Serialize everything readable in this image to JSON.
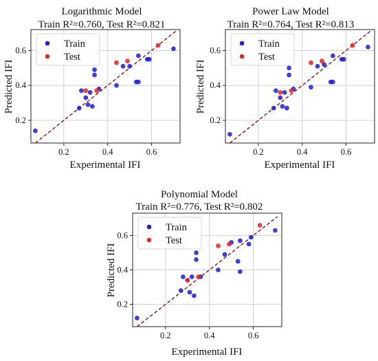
{
  "colors": {
    "train": "#1f1fd6",
    "test": "#e52424",
    "fit_line": "#8b0000",
    "grid": "#d0d0d0",
    "legend_border": "#d5d5d5"
  },
  "chart_data": [
    {
      "type": "scatter",
      "title": "Logarithmic Model",
      "subtitle": "Train R²=0.760, Test R²=0.821",
      "xlabel": "Experimental IFI",
      "ylabel": "Predicted IFI",
      "xlim": [
        0.05,
        0.73
      ],
      "ylim": [
        0.07,
        0.72
      ],
      "xticks": [
        0.2,
        0.4,
        0.6
      ],
      "yticks": [
        0.2,
        0.4,
        0.6
      ],
      "grid": true,
      "legend_position": "top-left",
      "reference_line": {
        "style": "dashed",
        "x": [
          0.07,
          0.71
        ],
        "y": [
          0.07,
          0.71
        ]
      },
      "series": [
        {
          "name": "Train",
          "color_key": "train",
          "x": [
            0.07,
            0.27,
            0.28,
            0.3,
            0.31,
            0.32,
            0.33,
            0.34,
            0.34,
            0.36,
            0.44,
            0.47,
            0.5,
            0.53,
            0.54,
            0.54,
            0.58,
            0.59,
            0.7
          ],
          "y": [
            0.14,
            0.27,
            0.37,
            0.33,
            0.29,
            0.36,
            0.28,
            0.46,
            0.49,
            0.38,
            0.4,
            0.51,
            0.51,
            0.42,
            0.42,
            0.57,
            0.55,
            0.55,
            0.61
          ]
        },
        {
          "name": "Test",
          "color_key": "test",
          "x": [
            0.3,
            0.35,
            0.44,
            0.49,
            0.63
          ],
          "y": [
            0.37,
            0.37,
            0.53,
            0.54,
            0.63
          ]
        }
      ]
    },
    {
      "type": "scatter",
      "title": "Power Law Model",
      "subtitle": "Train R²=0.764, Test R²=0.813",
      "xlabel": "Experimental IFI",
      "ylabel": "Predicted IFI",
      "xlim": [
        0.05,
        0.73
      ],
      "ylim": [
        0.07,
        0.72
      ],
      "xticks": [
        0.2,
        0.4,
        0.6
      ],
      "yticks": [
        0.2,
        0.4,
        0.6
      ],
      "grid": true,
      "legend_position": "top-left",
      "reference_line": {
        "style": "dashed",
        "x": [
          0.07,
          0.71
        ],
        "y": [
          0.07,
          0.71
        ]
      },
      "series": [
        {
          "name": "Train",
          "color_key": "train",
          "x": [
            0.07,
            0.27,
            0.28,
            0.3,
            0.31,
            0.32,
            0.33,
            0.34,
            0.34,
            0.36,
            0.44,
            0.47,
            0.5,
            0.53,
            0.54,
            0.54,
            0.58,
            0.59,
            0.7
          ],
          "y": [
            0.12,
            0.27,
            0.37,
            0.33,
            0.28,
            0.36,
            0.27,
            0.46,
            0.5,
            0.38,
            0.39,
            0.51,
            0.52,
            0.42,
            0.42,
            0.57,
            0.55,
            0.55,
            0.62
          ]
        },
        {
          "name": "Test",
          "color_key": "test",
          "x": [
            0.3,
            0.35,
            0.44,
            0.49,
            0.63
          ],
          "y": [
            0.36,
            0.37,
            0.53,
            0.54,
            0.63
          ]
        }
      ]
    },
    {
      "type": "scatter",
      "title": "Polynomial Model",
      "subtitle": "Train R²=0.776, Test R²=0.802",
      "xlabel": "Experimental IFI",
      "ylabel": "Predicted IFI",
      "xlim": [
        0.05,
        0.73
      ],
      "ylim": [
        0.07,
        0.73
      ],
      "xticks": [
        0.2,
        0.4,
        0.6
      ],
      "yticks": [
        0.2,
        0.4,
        0.6
      ],
      "grid": true,
      "legend_position": "top-left",
      "reference_line": {
        "style": "dashed",
        "x": [
          0.07,
          0.71
        ],
        "y": [
          0.07,
          0.71
        ]
      },
      "series": [
        {
          "name": "Train",
          "color_key": "train",
          "x": [
            0.07,
            0.27,
            0.28,
            0.3,
            0.31,
            0.32,
            0.33,
            0.34,
            0.34,
            0.36,
            0.44,
            0.47,
            0.5,
            0.53,
            0.54,
            0.54,
            0.58,
            0.59,
            0.7
          ],
          "y": [
            0.12,
            0.28,
            0.36,
            0.34,
            0.27,
            0.36,
            0.25,
            0.46,
            0.5,
            0.36,
            0.4,
            0.49,
            0.56,
            0.45,
            0.39,
            0.57,
            0.55,
            0.59,
            0.63
          ]
        },
        {
          "name": "Test",
          "color_key": "test",
          "x": [
            0.3,
            0.35,
            0.44,
            0.49,
            0.63
          ],
          "y": [
            0.34,
            0.36,
            0.54,
            0.55,
            0.66
          ]
        }
      ]
    }
  ]
}
